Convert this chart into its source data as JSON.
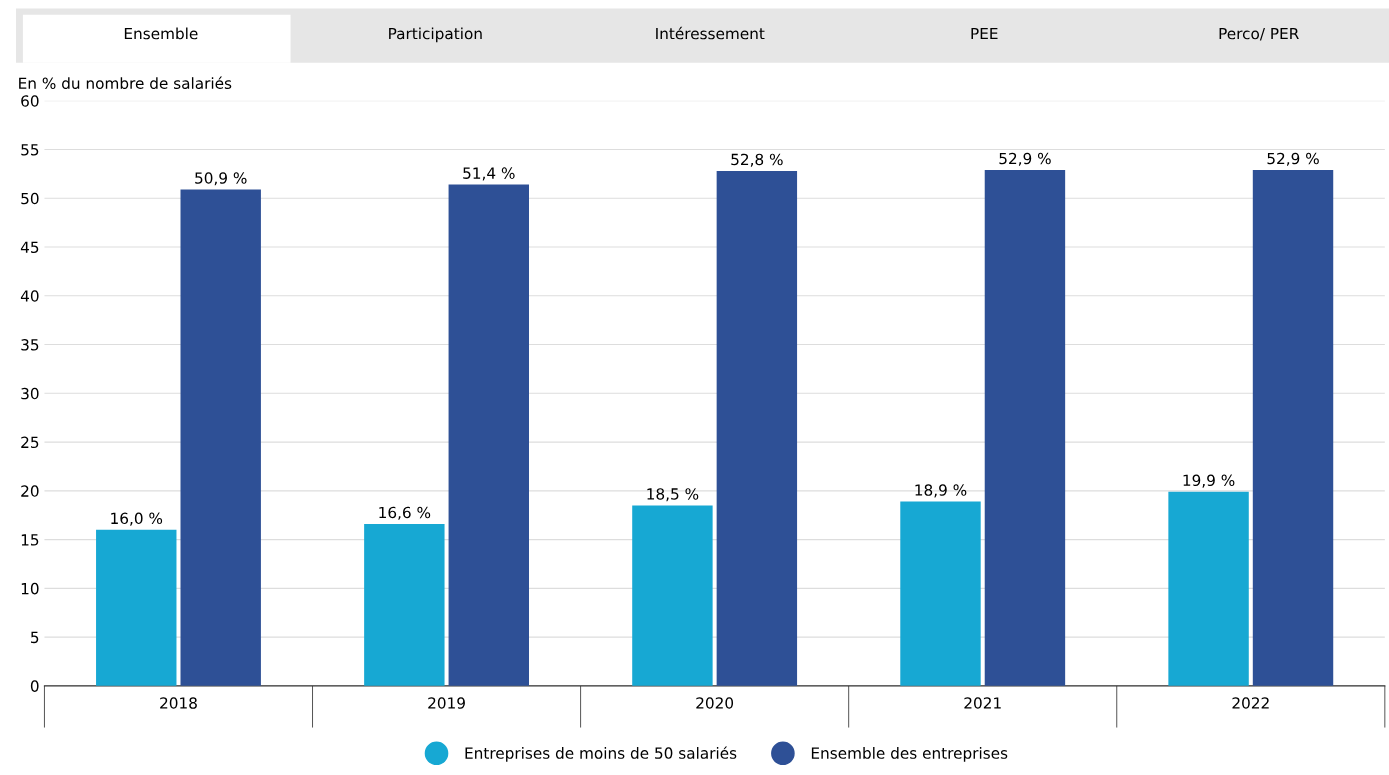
{
  "chart_data": {
    "type": "bar",
    "ylabel": "En % du nombre de salariés",
    "categories": [
      "2018",
      "2019",
      "2020",
      "2021",
      "2022"
    ],
    "series": [
      {
        "name": "Entreprises de moins de 50 salariés",
        "color": "#17a8d3",
        "values": [
          16.0,
          16.6,
          18.5,
          18.9,
          19.9
        ],
        "value_labels": [
          "16,0 %",
          "16,6 %",
          "18,5 %",
          "18,9 %",
          "19,9 %"
        ]
      },
      {
        "name": "Ensemble des entreprises",
        "color": "#2e5096",
        "values": [
          50.9,
          51.4,
          52.8,
          52.9,
          52.9
        ],
        "value_labels": [
          "50,9 %",
          "51,4 %",
          "52,8 %",
          "52,9 %",
          "52,9 %"
        ]
      }
    ],
    "ylim": [
      0,
      60
    ],
    "yticks": [
      0,
      5,
      10,
      15,
      20,
      25,
      30,
      35,
      40,
      45,
      50,
      55,
      60
    ],
    "grid": "y",
    "legend": "bottom",
    "annotations": [
      "Ensemble",
      "Participation",
      "Intéressement",
      "PEE",
      "Perco/ PER"
    ]
  }
}
